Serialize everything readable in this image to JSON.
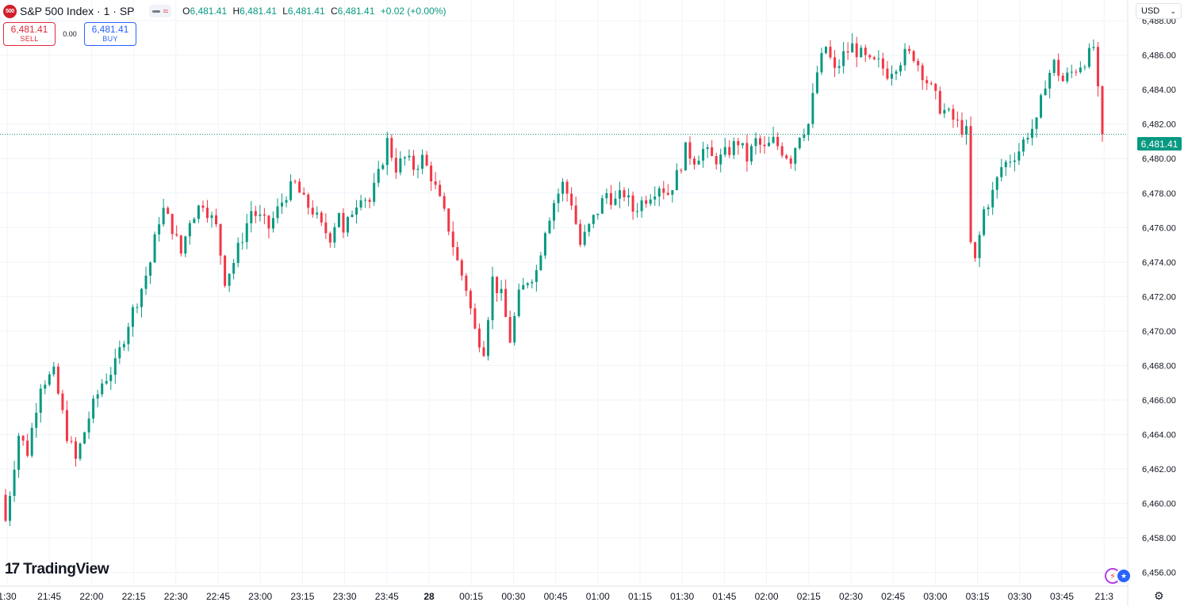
{
  "header": {
    "symbol_logo": "500",
    "symbol_title": "S&P 500 Index · 1 · SP",
    "market_status_icon": "wave-icon",
    "ohlc": {
      "o_label": "O",
      "o": "6,481.41",
      "h_label": "H",
      "h": "6,481.41",
      "l_label": "L",
      "l": "6,481.41",
      "c_label": "C",
      "c": "6,481.41",
      "change": "+0.02 (+0.00%)"
    }
  },
  "trade": {
    "sell_price": "6,481.41",
    "sell_label": "SELL",
    "spread": "0.00",
    "buy_price": "6,481.41",
    "buy_label": "BUY"
  },
  "currency": {
    "value": "USD",
    "icon": "chevron-down-icon"
  },
  "branding": {
    "logo_mark": "17",
    "name": "TradingView"
  },
  "last_price_label": "6,481.41",
  "colors": {
    "up": "#089981",
    "down": "#f23645",
    "grid": "#f0f3fa",
    "text": "#131722"
  },
  "chart_data": {
    "type": "candlestick",
    "interval": "1",
    "y_axis": {
      "side": "right",
      "ticks": [
        "6,456.00",
        "6,458.00",
        "6,460.00",
        "6,462.00",
        "6,464.00",
        "6,466.00",
        "6,468.00",
        "6,470.00",
        "6,472.00",
        "6,474.00",
        "6,476.00",
        "6,478.00",
        "6,480.00",
        "6,482.00",
        "6,484.00",
        "6,486.00",
        "6,488.00"
      ],
      "tick_values": [
        6456,
        6458,
        6460,
        6462,
        6464,
        6466,
        6468,
        6470,
        6472,
        6474,
        6476,
        6478,
        6480,
        6482,
        6484,
        6486,
        6488
      ],
      "range": [
        6455.2,
        6489.2
      ]
    },
    "x_axis": {
      "ticks": [
        "1:30",
        "21:45",
        "22:00",
        "22:15",
        "22:30",
        "22:45",
        "23:00",
        "23:15",
        "23:30",
        "23:45",
        "28",
        "00:15",
        "00:30",
        "00:45",
        "01:00",
        "01:15",
        "01:30",
        "01:45",
        "02:00",
        "02:15",
        "02:30",
        "02:45",
        "03:00",
        "03:15",
        "03:30",
        "03:45",
        "21:3"
      ],
      "bold_ticks": [
        "28"
      ]
    },
    "last_price": 6481.41,
    "grid": true,
    "close_path": [
      [
        0,
        6459
      ],
      [
        3,
        6464
      ],
      [
        5,
        6463
      ],
      [
        8,
        6467
      ],
      [
        11,
        6467.5
      ],
      [
        14,
        6464
      ],
      [
        16,
        6462.5
      ],
      [
        19,
        6465
      ],
      [
        22,
        6467
      ],
      [
        25,
        6468
      ],
      [
        28,
        6470.5
      ],
      [
        31,
        6472.5
      ],
      [
        33,
        6474
      ],
      [
        35,
        6476.5
      ],
      [
        36,
        6477
      ],
      [
        38,
        6476
      ],
      [
        40,
        6474.5
      ],
      [
        42,
        6476.5
      ],
      [
        45,
        6477.5
      ],
      [
        48,
        6476
      ],
      [
        50,
        6473
      ],
      [
        52,
        6474
      ],
      [
        54,
        6475.5
      ],
      [
        56,
        6477
      ],
      [
        58,
        6476.5
      ],
      [
        60,
        6476
      ],
      [
        62,
        6477
      ],
      [
        64,
        6478
      ],
      [
        66,
        6478.5
      ],
      [
        68,
        6477.5
      ],
      [
        70,
        6477
      ],
      [
        72,
        6476
      ],
      [
        74,
        6475.5
      ],
      [
        76,
        6477
      ],
      [
        77,
        6475.5
      ],
      [
        79,
        6477
      ],
      [
        81,
        6478
      ],
      [
        83,
        6477.5
      ],
      [
        85,
        6479
      ],
      [
        87,
        6481
      ],
      [
        89,
        6479.5
      ],
      [
        91,
        6480
      ],
      [
        93,
        6479.5
      ],
      [
        95,
        6480
      ],
      [
        97,
        6479
      ],
      [
        99,
        6477.5
      ],
      [
        101,
        6476
      ],
      [
        103,
        6474
      ],
      [
        105,
        6472.5
      ],
      [
        107,
        6470
      ],
      [
        109,
        6469
      ],
      [
        111,
        6473
      ],
      [
        113,
        6472
      ],
      [
        115,
        6469.5
      ],
      [
        117,
        6472
      ],
      [
        119,
        6473
      ],
      [
        121,
        6473.5
      ],
      [
        123,
        6476
      ],
      [
        125,
        6477.5
      ],
      [
        127,
        6478.5
      ],
      [
        129,
        6477.5
      ],
      [
        131,
        6475
      ],
      [
        133,
        6476
      ],
      [
        135,
        6477
      ],
      [
        137,
        6478
      ],
      [
        139,
        6477.5
      ],
      [
        141,
        6478
      ],
      [
        143,
        6477
      ],
      [
        145,
        6477.5
      ],
      [
        147,
        6478
      ],
      [
        149,
        6478.5
      ],
      [
        151,
        6478
      ],
      [
        153,
        6479
      ],
      [
        155,
        6480.5
      ],
      [
        157,
        6480
      ],
      [
        159,
        6480.5
      ],
      [
        161,
        6480
      ],
      [
        163,
        6480
      ],
      [
        165,
        6480.5
      ],
      [
        167,
        6481
      ],
      [
        169,
        6480
      ],
      [
        171,
        6481
      ],
      [
        173,
        6480.5
      ],
      [
        175,
        6481
      ],
      [
        177,
        6480.5
      ],
      [
        179,
        6480
      ],
      [
        181,
        6481.5
      ],
      [
        183,
        6482
      ],
      [
        185,
        6485
      ],
      [
        187,
        6486.5
      ],
      [
        189,
        6485
      ],
      [
        191,
        6486
      ],
      [
        193,
        6486.5
      ],
      [
        195,
        6486
      ],
      [
        197,
        6485.5
      ],
      [
        199,
        6485.5
      ],
      [
        201,
        6485
      ],
      [
        203,
        6485.5
      ],
      [
        205,
        6486
      ],
      [
        207,
        6486
      ],
      [
        209,
        6485
      ],
      [
        211,
        6484
      ],
      [
        213,
        6483
      ],
      [
        215,
        6482.5
      ],
      [
        217,
        6482
      ],
      [
        219,
        6481.5
      ],
      [
        220,
        6475
      ],
      [
        221,
        6474
      ],
      [
        223,
        6477
      ],
      [
        225,
        6478
      ],
      [
        227,
        6479.5
      ],
      [
        229,
        6480
      ],
      [
        231,
        6480.5
      ],
      [
        233,
        6481.5
      ],
      [
        235,
        6482
      ],
      [
        237,
        6484.5
      ],
      [
        239,
        6485.5
      ],
      [
        241,
        6484.5
      ],
      [
        243,
        6485
      ],
      [
        245,
        6485.5
      ],
      [
        247,
        6486
      ],
      [
        248,
        6486.5
      ],
      [
        250,
        6481
      ]
    ],
    "n_candles": 251,
    "seed": 7
  }
}
